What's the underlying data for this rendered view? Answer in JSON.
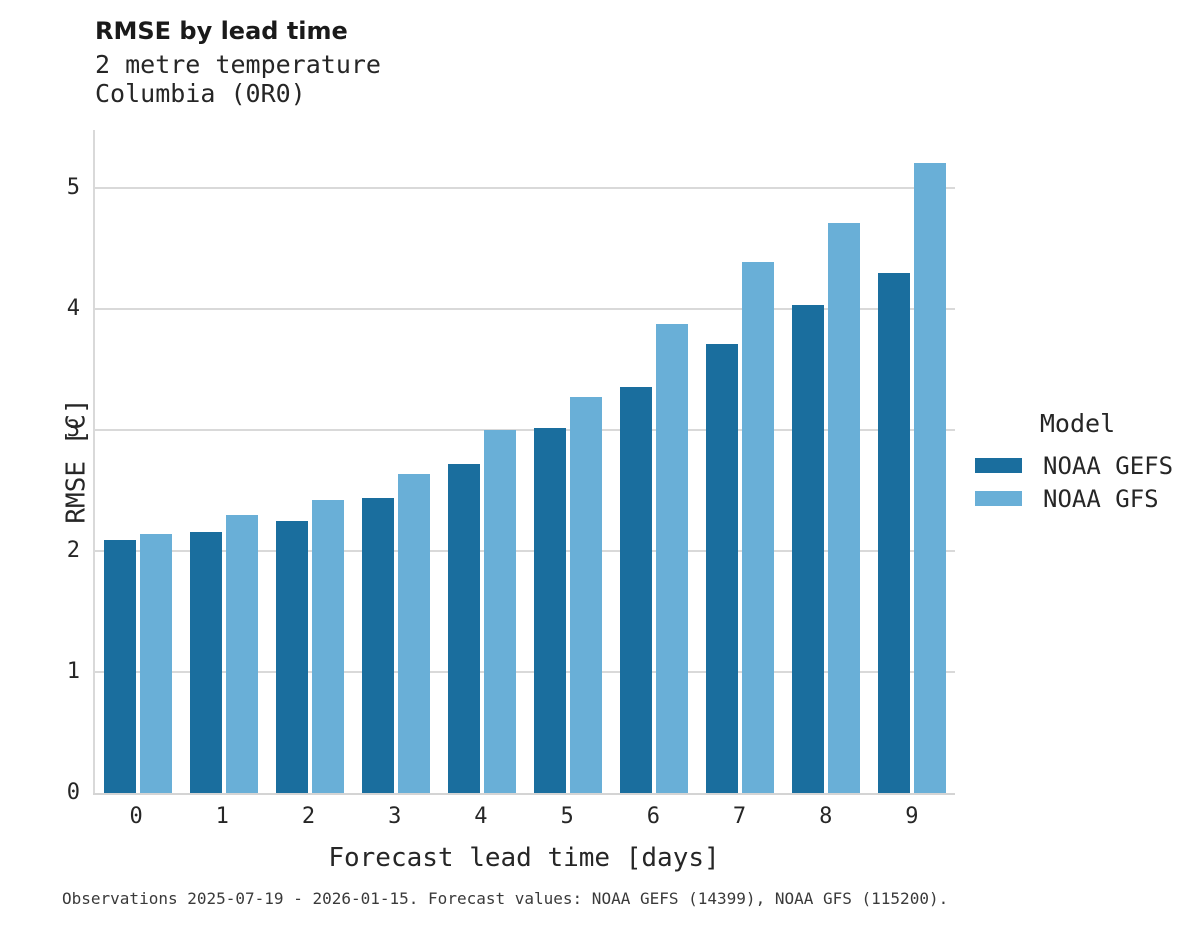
{
  "title": "RMSE by lead time",
  "subtitle_line1": "2 metre temperature",
  "subtitle_line2": "Columbia (0R0)",
  "footer": "Observations 2025-07-19 - 2026-01-15. Forecast values: NOAA GEFS (14399), NOAA GFS (115200).",
  "legend": {
    "title": "Model",
    "entries": [
      {
        "label": "NOAA GEFS",
        "color": "#1a6e9e"
      },
      {
        "label": "NOAA GFS",
        "color": "#69afd7"
      }
    ]
  },
  "colors": {
    "noaa_gefs": "#1a6e9e",
    "noaa_gfs": "#69afd7",
    "gridline": "#d9d9d9",
    "axis_line": "#d4d4d4",
    "text": "#262626"
  },
  "chart_data": {
    "type": "bar",
    "title": "RMSE by lead time",
    "subtitle": [
      "2 metre temperature",
      "Columbia (0R0)"
    ],
    "categories": [
      "0",
      "1",
      "2",
      "3",
      "4",
      "5",
      "6",
      "7",
      "8",
      "9"
    ],
    "series": [
      {
        "name": "NOAA GEFS",
        "color": "#1a6e9e",
        "values": [
          2.09,
          2.16,
          2.25,
          2.44,
          2.72,
          3.02,
          3.36,
          3.71,
          4.03,
          4.3
        ]
      },
      {
        "name": "NOAA GFS",
        "color": "#69afd7",
        "values": [
          2.14,
          2.3,
          2.42,
          2.64,
          3.0,
          3.27,
          3.88,
          4.39,
          4.71,
          5.21
        ]
      }
    ],
    "xlabel": "Forecast lead time [days]",
    "ylabel": "RMSE [C]",
    "ylim": [
      0,
      5.48
    ],
    "yticks": [
      0,
      1,
      2,
      3,
      4,
      5
    ],
    "grid": true,
    "legend_title": "Model",
    "legend_position": "right",
    "caption": "Observations 2025-07-19 - 2026-01-15. Forecast values: NOAA GEFS (14399), NOAA GFS (115200)."
  }
}
